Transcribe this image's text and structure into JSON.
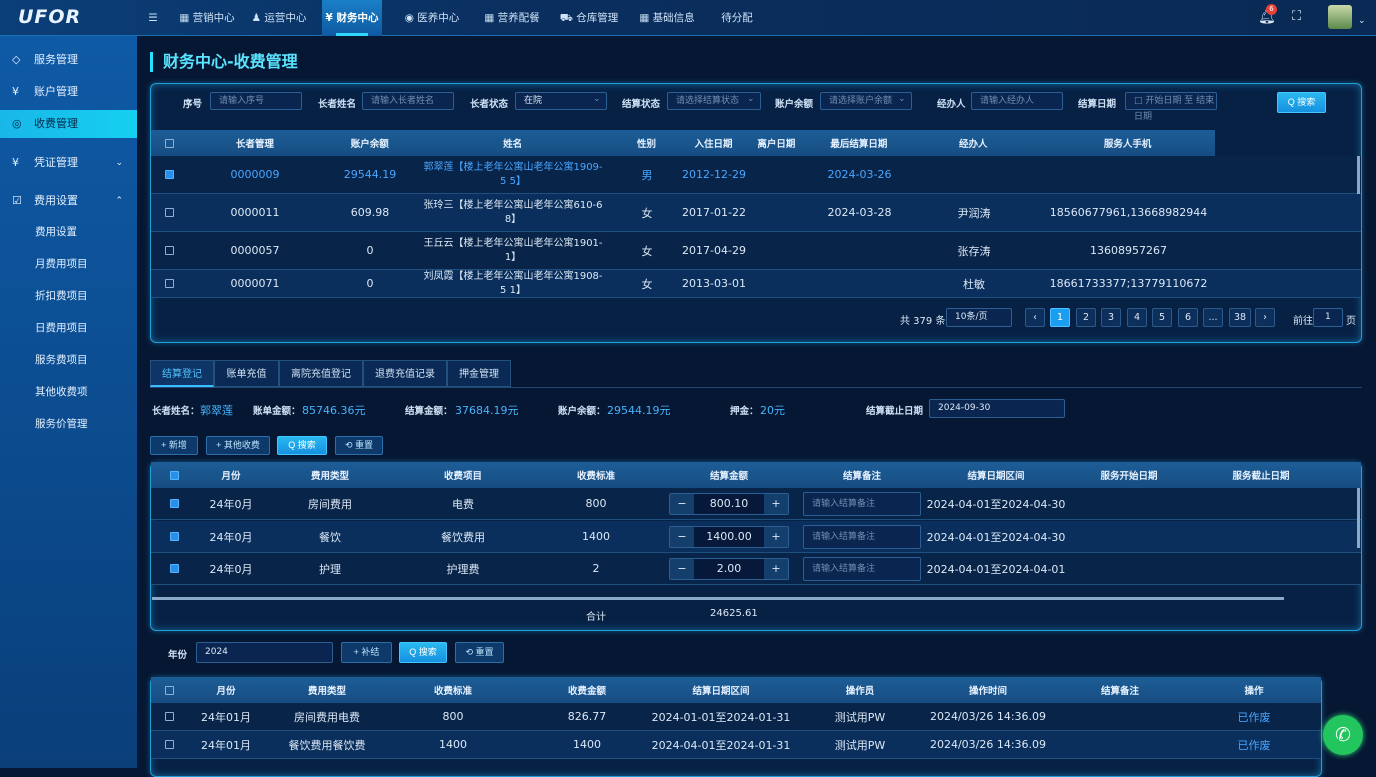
{
  "app": {
    "logo": "UFOR"
  },
  "topnav": [
    {
      "label": "☰",
      "icon": "menu-icon"
    },
    {
      "label": "▦ 营销中心"
    },
    {
      "label": "♟ 运营中心"
    },
    {
      "label": "¥ 财务中心",
      "active": true
    },
    {
      "label": "◉ 医养中心"
    },
    {
      "label": "▦ 营养配餐"
    },
    {
      "label": "⛟ 仓库管理"
    },
    {
      "label": "▦ 基础信息"
    },
    {
      "label": "待分配"
    }
  ],
  "header": {
    "notification_count": "6"
  },
  "sidebar": [
    {
      "icon": "◇",
      "label": "服务管理"
    },
    {
      "icon": "¥",
      "label": "账户管理"
    },
    {
      "icon": "◎",
      "label": "收费管理",
      "active": true
    },
    {
      "icon": "¥",
      "label": "凭证管理",
      "chevron": "⌄"
    },
    {
      "icon": "☑",
      "label": "费用设置",
      "chevron": "⌃"
    }
  ],
  "sidebar_sub": [
    "费用设置",
    "月费用项目",
    "折扣费项目",
    "日费用项目",
    "服务费项目",
    "其他收费项",
    "服务价管理"
  ],
  "page_title": "财务中心-收费管理",
  "filters": [
    {
      "label": "序号",
      "placeholder": "请输入序号"
    },
    {
      "label": "长者姓名",
      "placeholder": "请输入长者姓名"
    },
    {
      "label": "长者状态",
      "value": "在院"
    },
    {
      "label": "结算状态",
      "placeholder": "请选择结算状态"
    },
    {
      "label": "账户余额",
      "placeholder": "请选择账户余额"
    },
    {
      "label": "经办人",
      "placeholder": "请输入经办人"
    },
    {
      "label": "结算日期",
      "placeholder": "□ 开始日期 至 结束日期"
    }
  ],
  "search_button": "Q 搜索",
  "table1": {
    "columns": [
      "",
      "长者管理",
      "账户余额",
      "姓名",
      "性别",
      "入住日期",
      "离户日期",
      "最后结算日期",
      "经办人",
      "服务人手机"
    ],
    "rows": [
      {
        "checked": true,
        "cells": [
          "",
          "0000009",
          "29544.19",
          "郭翠莲【楼上老年公寓山老年公寓1909-5 5】",
          "男",
          "2012-12-29",
          "",
          "2024-03-26",
          "",
          ""
        ]
      },
      {
        "checked": false,
        "cells": [
          "",
          "0000011",
          "609.98",
          "张玲三【楼上老年公寓山老年公寓610-6 8】",
          "女",
          "2017-01-22",
          "",
          "2024-03-28",
          "尹润涛",
          "18560677961,13668982944"
        ]
      },
      {
        "checked": false,
        "cells": [
          "",
          "0000057",
          "0",
          "王丘云【楼上老年公寓山老年公寓1901- 1】",
          "女",
          "2017-04-29",
          "",
          "",
          "张存涛",
          "13608957267"
        ]
      },
      {
        "checked": false,
        "cells": [
          "",
          "0000071",
          "0",
          "刘凤霞【楼上老年公寓山老年公寓1908-5 1】",
          "女",
          "2013-03-01",
          "",
          "",
          "杜敏",
          "18661733377;13779110672"
        ]
      }
    ]
  },
  "pagination": {
    "total": "共 379 条",
    "page_size": "10条/页",
    "pages": [
      "‹",
      "1",
      "2",
      "3",
      "4",
      "5",
      "6",
      "...",
      "38",
      "›"
    ],
    "current": "1",
    "goto_label": "前往",
    "goto_value": "1",
    "page_unit": "页"
  },
  "tabs": [
    "结算登记",
    "账单充值",
    "离院充值登记",
    "退费充值记录",
    "押金管理"
  ],
  "summary": {
    "name_label": "长者姓名：",
    "name": "郭翠莲",
    "bill_label": "账单金额：",
    "bill": "85746.36元",
    "settle_label": "结算金额：",
    "settle": "37684.19元",
    "balance_label": "账户余额：",
    "balance": "29544.19元",
    "deposit_label": "押金：",
    "deposit": "20元",
    "date_label": "结算截止日期",
    "date": "2024-09-30"
  },
  "actions": [
    "+ 新增",
    "+ 其他收费",
    "Q 搜索",
    "⟲ 重置"
  ],
  "table2": {
    "columns": [
      "",
      "月份",
      "费用类型",
      "收费项目",
      "收费标准",
      "结算金额",
      "结算备注",
      "结算日期区间",
      "服务开始日期",
      "服务截止日期"
    ],
    "rows": [
      {
        "cells": [
          "",
          "24年0月",
          "房间费用",
          "电费",
          "800",
          "800.10",
          "",
          "2024-04-01至2024-04-30",
          "",
          ""
        ]
      },
      {
        "cells": [
          "",
          "24年0月",
          "餐饮",
          "餐饮费用",
          "1400",
          "1400.00",
          "",
          "2024-04-01至2024-04-30",
          "",
          ""
        ]
      },
      {
        "cells": [
          "",
          "24年0月",
          "护理",
          "护理费",
          "2",
          "2.00",
          "",
          "2024-04-01至2024-04-01",
          "",
          ""
        ]
      }
    ],
    "remark_placeholder": "请输入结算备注",
    "total_label": "合计",
    "total_value": "24625.61"
  },
  "year_filter": {
    "label": "年份",
    "value": "2024",
    "buttons": [
      "+ 补结",
      "Q 搜索",
      "⟲ 重置"
    ]
  },
  "table3": {
    "columns": [
      "",
      "月份",
      "费用类型",
      "收费标准",
      "收费金额",
      "结算日期区间",
      "操作员",
      "操作时间",
      "结算备注",
      "操作"
    ],
    "rows": [
      {
        "cells": [
          "",
          "24年01月",
          "房间费用电费",
          "800",
          "826.77",
          "2024-01-01至2024-01-31",
          "测试用PW",
          "2024/03/26 14:36.09",
          "",
          "已作废"
        ]
      },
      {
        "cells": [
          "",
          "24年01月",
          "餐饮费用餐饮费",
          "1400",
          "1400",
          "2024-04-01至2024-01-31",
          "测试用PW",
          "2024/03/26 14:36.09",
          "",
          "已作废"
        ]
      }
    ]
  },
  "colors": {
    "accent": "#28e0ff",
    "primary": "#1b9ef0",
    "link": "#4aa6ff",
    "call": "#22c55e"
  }
}
